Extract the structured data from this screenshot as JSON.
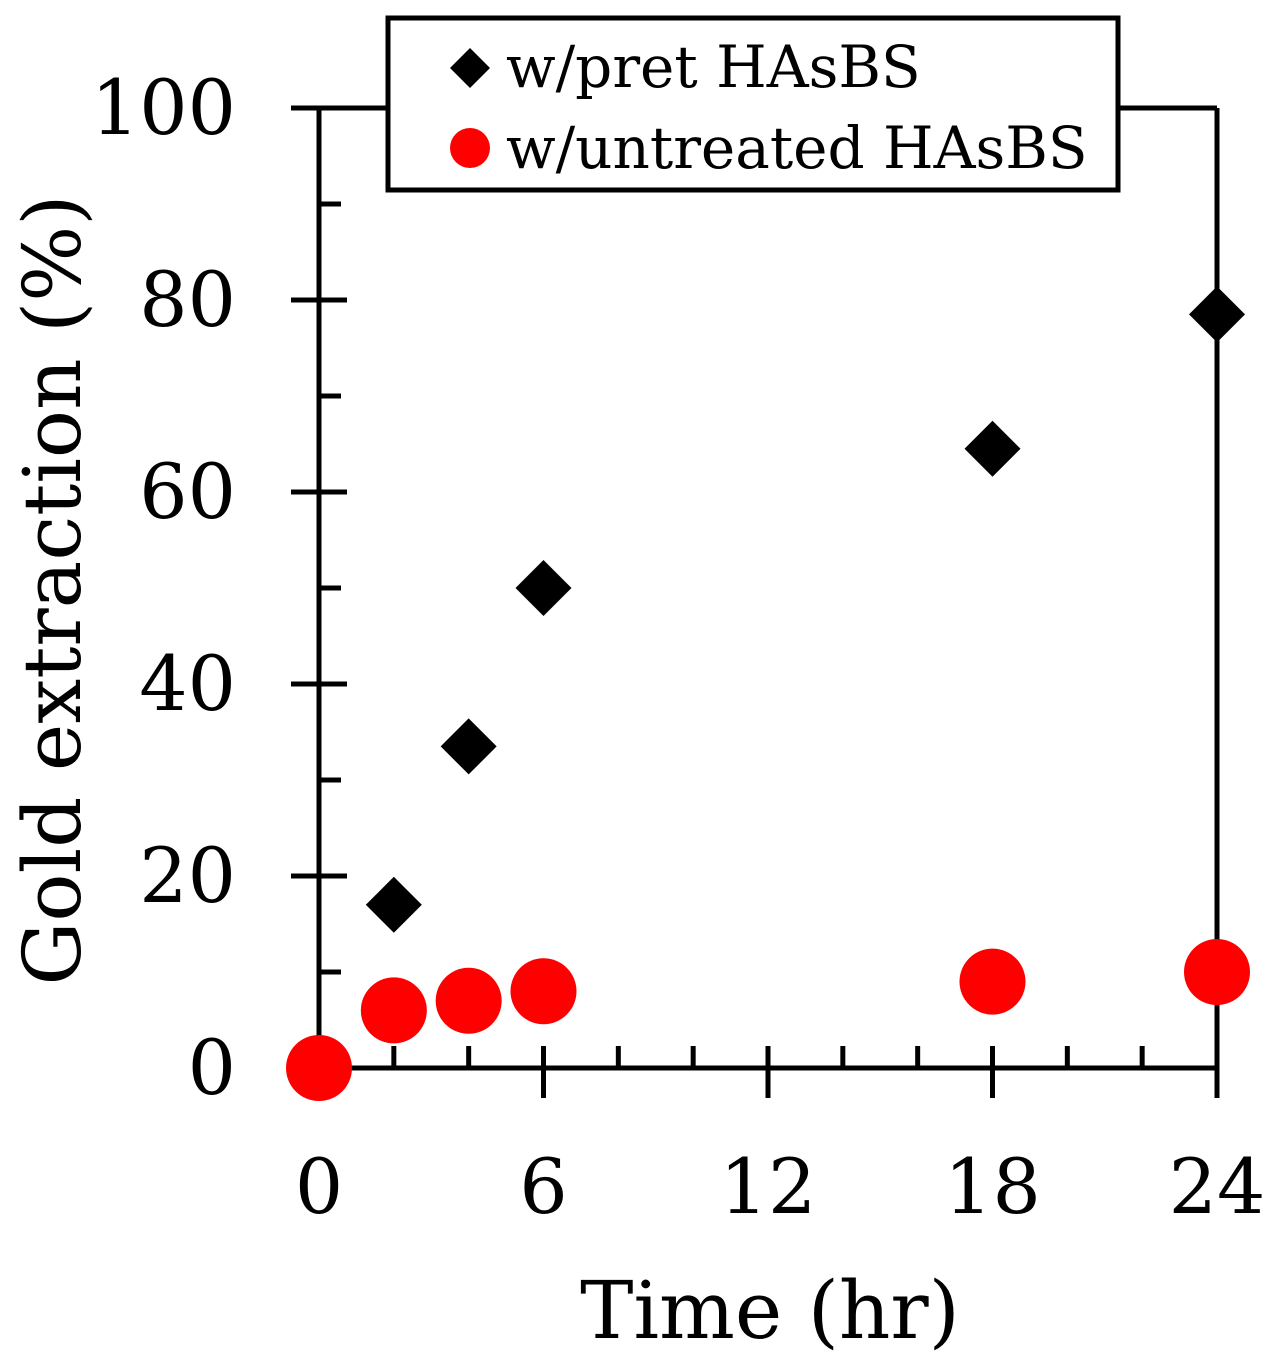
{
  "chart_data": {
    "type": "scatter",
    "title": "",
    "xlabel": "Time (hr)",
    "ylabel": "Gold extraction (%)",
    "xlim": [
      0,
      24
    ],
    "ylim": [
      0,
      100
    ],
    "x_ticks": [
      0,
      6,
      12,
      18,
      24
    ],
    "x_tick_labels": [
      "0",
      "6",
      "12",
      "18",
      "24"
    ],
    "x_minor_step": 2,
    "y_ticks": [
      0,
      20,
      40,
      60,
      80,
      100
    ],
    "y_tick_labels": [
      "0",
      "20",
      "40",
      "60",
      "80",
      "100"
    ],
    "y_minor_step": 10,
    "grid": false,
    "legend_position": "top-center",
    "series": [
      {
        "name": "w/pret HAsBS",
        "marker": "diamond",
        "color": "#000000",
        "x": [
          2,
          4,
          6,
          18,
          24
        ],
        "y": [
          17,
          33.5,
          50,
          64.5,
          78.5
        ]
      },
      {
        "name": "w/untreated HAsBS",
        "marker": "circle",
        "color": "#ff0000",
        "x": [
          0,
          2,
          4,
          6,
          18,
          24
        ],
        "y": [
          0,
          6,
          7,
          8,
          9,
          10
        ]
      }
    ]
  }
}
